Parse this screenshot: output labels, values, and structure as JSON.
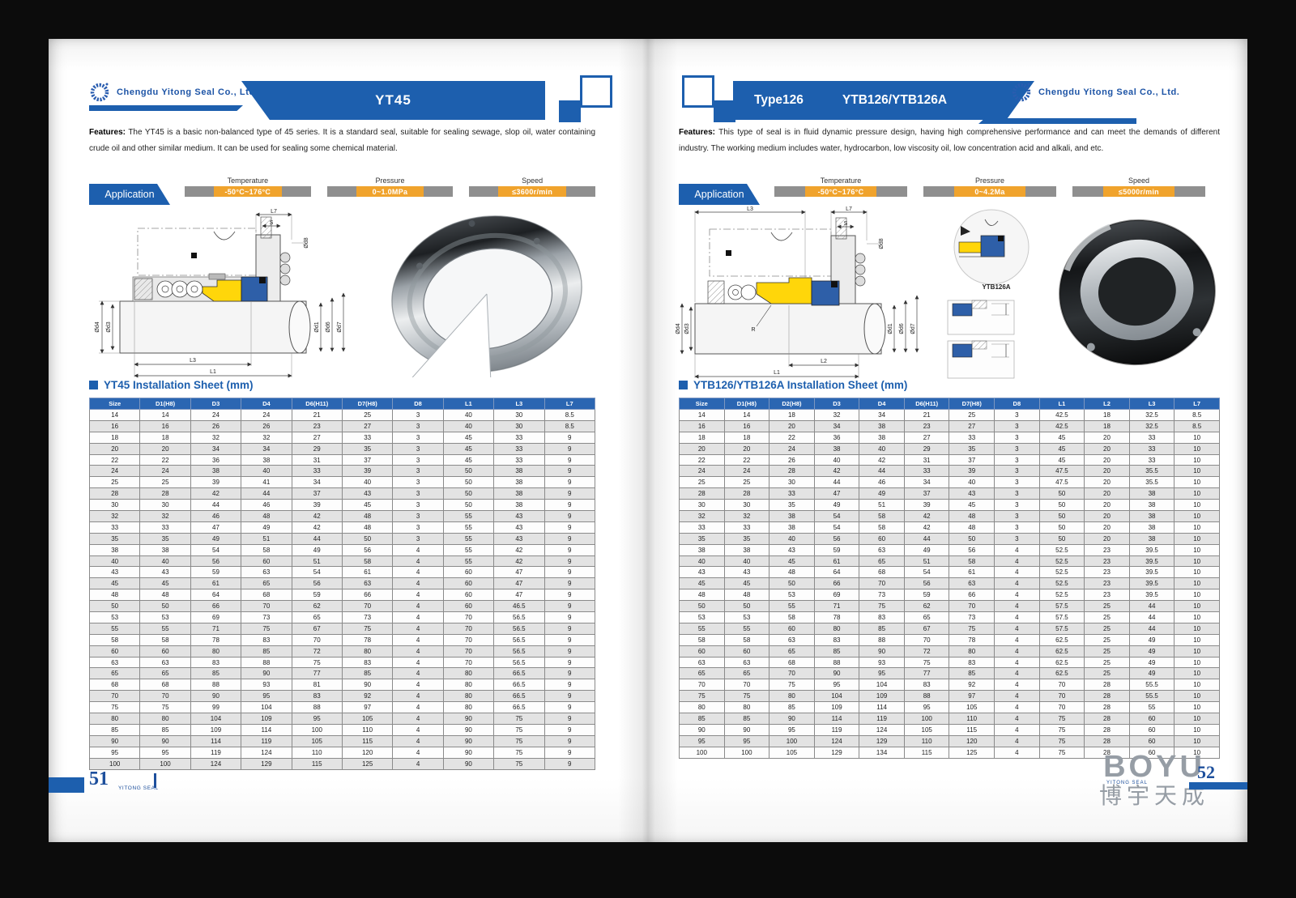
{
  "company": {
    "name": "Chengdu Yitong Seal Co., Ltd."
  },
  "colors": {
    "blue": "#1d5fae",
    "orange": "#f0a32c",
    "gray_bar": "#8f8f8f",
    "table_header_blue": "#2b66b2"
  },
  "left_page": {
    "title": "YT45",
    "features_label": "Features:",
    "features_text": "The YT45 is a basic non-balanced type of 45 series. It is a standard seal, suitable for sealing sewage, slop oil, water containing crude oil and other similar medium. It can be used for sealing some chemical material.",
    "application_label": "Application",
    "specs": [
      {
        "name": "Temperature",
        "value": "-50°C~176°C"
      },
      {
        "name": "Pressure",
        "value": "0~1.0MPa"
      },
      {
        "name": "Speed",
        "value": "≤3600r/min"
      }
    ],
    "section_title": "YT45 Installation Sheet (mm)",
    "drawing_labels": {
      "l7": "L7",
      "s": "S",
      "d8": "Ød8",
      "d4": "Ød4",
      "d3": "Ød3",
      "d1": "Ød1",
      "d6": "Ød6",
      "d7": "Ød7",
      "l3": "L3",
      "l1": "L1"
    },
    "table": {
      "columns": [
        "Size",
        "D1(H8)",
        "D3",
        "D4",
        "D6(H11)",
        "D7(H8)",
        "D8",
        "L1",
        "L3",
        "L7"
      ],
      "rows": [
        [
          "14",
          "14",
          "24",
          "24",
          "21",
          "25",
          "3",
          "40",
          "30",
          "8.5"
        ],
        [
          "16",
          "16",
          "26",
          "26",
          "23",
          "27",
          "3",
          "40",
          "30",
          "8.5"
        ],
        [
          "18",
          "18",
          "32",
          "32",
          "27",
          "33",
          "3",
          "45",
          "33",
          "9"
        ],
        [
          "20",
          "20",
          "34",
          "34",
          "29",
          "35",
          "3",
          "45",
          "33",
          "9"
        ],
        [
          "22",
          "22",
          "36",
          "38",
          "31",
          "37",
          "3",
          "45",
          "33",
          "9"
        ],
        [
          "24",
          "24",
          "38",
          "40",
          "33",
          "39",
          "3",
          "50",
          "38",
          "9"
        ],
        [
          "25",
          "25",
          "39",
          "41",
          "34",
          "40",
          "3",
          "50",
          "38",
          "9"
        ],
        [
          "28",
          "28",
          "42",
          "44",
          "37",
          "43",
          "3",
          "50",
          "38",
          "9"
        ],
        [
          "30",
          "30",
          "44",
          "46",
          "39",
          "45",
          "3",
          "50",
          "38",
          "9"
        ],
        [
          "32",
          "32",
          "46",
          "48",
          "42",
          "48",
          "3",
          "55",
          "43",
          "9"
        ],
        [
          "33",
          "33",
          "47",
          "49",
          "42",
          "48",
          "3",
          "55",
          "43",
          "9"
        ],
        [
          "35",
          "35",
          "49",
          "51",
          "44",
          "50",
          "3",
          "55",
          "43",
          "9"
        ],
        [
          "38",
          "38",
          "54",
          "58",
          "49",
          "56",
          "4",
          "55",
          "42",
          "9"
        ],
        [
          "40",
          "40",
          "56",
          "60",
          "51",
          "58",
          "4",
          "55",
          "42",
          "9"
        ],
        [
          "43",
          "43",
          "59",
          "63",
          "54",
          "61",
          "4",
          "60",
          "47",
          "9"
        ],
        [
          "45",
          "45",
          "61",
          "65",
          "56",
          "63",
          "4",
          "60",
          "47",
          "9"
        ],
        [
          "48",
          "48",
          "64",
          "68",
          "59",
          "66",
          "4",
          "60",
          "47",
          "9"
        ],
        [
          "50",
          "50",
          "66",
          "70",
          "62",
          "70",
          "4",
          "60",
          "46.5",
          "9"
        ],
        [
          "53",
          "53",
          "69",
          "73",
          "65",
          "73",
          "4",
          "70",
          "56.5",
          "9"
        ],
        [
          "55",
          "55",
          "71",
          "75",
          "67",
          "75",
          "4",
          "70",
          "56.5",
          "9"
        ],
        [
          "58",
          "58",
          "78",
          "83",
          "70",
          "78",
          "4",
          "70",
          "56.5",
          "9"
        ],
        [
          "60",
          "60",
          "80",
          "85",
          "72",
          "80",
          "4",
          "70",
          "56.5",
          "9"
        ],
        [
          "63",
          "63",
          "83",
          "88",
          "75",
          "83",
          "4",
          "70",
          "56.5",
          "9"
        ],
        [
          "65",
          "65",
          "85",
          "90",
          "77",
          "85",
          "4",
          "80",
          "66.5",
          "9"
        ],
        [
          "68",
          "68",
          "88",
          "93",
          "81",
          "90",
          "4",
          "80",
          "66.5",
          "9"
        ],
        [
          "70",
          "70",
          "90",
          "95",
          "83",
          "92",
          "4",
          "80",
          "66.5",
          "9"
        ],
        [
          "75",
          "75",
          "99",
          "104",
          "88",
          "97",
          "4",
          "80",
          "66.5",
          "9"
        ],
        [
          "80",
          "80",
          "104",
          "109",
          "95",
          "105",
          "4",
          "90",
          "75",
          "9"
        ],
        [
          "85",
          "85",
          "109",
          "114",
          "100",
          "110",
          "4",
          "90",
          "75",
          "9"
        ],
        [
          "90",
          "90",
          "114",
          "119",
          "105",
          "115",
          "4",
          "90",
          "75",
          "9"
        ],
        [
          "95",
          "95",
          "119",
          "124",
          "110",
          "120",
          "4",
          "90",
          "75",
          "9"
        ],
        [
          "100",
          "100",
          "124",
          "129",
          "115",
          "125",
          "4",
          "90",
          "75",
          "9"
        ]
      ]
    },
    "page_number": "51",
    "footer_brand": "YITONG SEAL"
  },
  "right_page": {
    "title_type": "Type126",
    "title_model": "YTB126/YTB126A",
    "features_label": "Features:",
    "features_text": "This type of seal is in fluid dynamic pressure design, having high comprehensive performance and can meet the demands of different industry. The working medium includes water, hydrocarbon, low viscosity oil, low concentration acid and alkali, and etc.",
    "application_label": "Application",
    "specs": [
      {
        "name": "Temperature",
        "value": "-50°C~176°C"
      },
      {
        "name": "Pressure",
        "value": "0~4.2Ma"
      },
      {
        "name": "Speed",
        "value": "≤5000r/min"
      }
    ],
    "section_title": "YTB126/YTB126A Installation Sheet (mm)",
    "drawing_labels": {
      "l3": "L3",
      "l7": "L7",
      "s": "S",
      "d8": "Ød8",
      "r": "R",
      "d4": "Ød4",
      "d3": "Ød3",
      "d1": "Ød1",
      "d6": "Ød6",
      "d7": "Ød7",
      "l2": "L2",
      "l1": "L1",
      "detail": "YTB126A"
    },
    "table": {
      "columns": [
        "Size",
        "D1(H8)",
        "D2(H8)",
        "D3",
        "D4",
        "D6(H11)",
        "D7(H8)",
        "D8",
        "L1",
        "L2",
        "L3",
        "L7"
      ],
      "rows": [
        [
          "14",
          "14",
          "18",
          "32",
          "34",
          "21",
          "25",
          "3",
          "42.5",
          "18",
          "32.5",
          "8.5"
        ],
        [
          "16",
          "16",
          "20",
          "34",
          "38",
          "23",
          "27",
          "3",
          "42.5",
          "18",
          "32.5",
          "8.5"
        ],
        [
          "18",
          "18",
          "22",
          "36",
          "38",
          "27",
          "33",
          "3",
          "45",
          "20",
          "33",
          "10"
        ],
        [
          "20",
          "20",
          "24",
          "38",
          "40",
          "29",
          "35",
          "3",
          "45",
          "20",
          "33",
          "10"
        ],
        [
          "22",
          "22",
          "26",
          "40",
          "42",
          "31",
          "37",
          "3",
          "45",
          "20",
          "33",
          "10"
        ],
        [
          "24",
          "24",
          "28",
          "42",
          "44",
          "33",
          "39",
          "3",
          "47.5",
          "20",
          "35.5",
          "10"
        ],
        [
          "25",
          "25",
          "30",
          "44",
          "46",
          "34",
          "40",
          "3",
          "47.5",
          "20",
          "35.5",
          "10"
        ],
        [
          "28",
          "28",
          "33",
          "47",
          "49",
          "37",
          "43",
          "3",
          "50",
          "20",
          "38",
          "10"
        ],
        [
          "30",
          "30",
          "35",
          "49",
          "51",
          "39",
          "45",
          "3",
          "50",
          "20",
          "38",
          "10"
        ],
        [
          "32",
          "32",
          "38",
          "54",
          "58",
          "42",
          "48",
          "3",
          "50",
          "20",
          "38",
          "10"
        ],
        [
          "33",
          "33",
          "38",
          "54",
          "58",
          "42",
          "48",
          "3",
          "50",
          "20",
          "38",
          "10"
        ],
        [
          "35",
          "35",
          "40",
          "56",
          "60",
          "44",
          "50",
          "3",
          "50",
          "20",
          "38",
          "10"
        ],
        [
          "38",
          "38",
          "43",
          "59",
          "63",
          "49",
          "56",
          "4",
          "52.5",
          "23",
          "39.5",
          "10"
        ],
        [
          "40",
          "40",
          "45",
          "61",
          "65",
          "51",
          "58",
          "4",
          "52.5",
          "23",
          "39.5",
          "10"
        ],
        [
          "43",
          "43",
          "48",
          "64",
          "68",
          "54",
          "61",
          "4",
          "52.5",
          "23",
          "39.5",
          "10"
        ],
        [
          "45",
          "45",
          "50",
          "66",
          "70",
          "56",
          "63",
          "4",
          "52.5",
          "23",
          "39.5",
          "10"
        ],
        [
          "48",
          "48",
          "53",
          "69",
          "73",
          "59",
          "66",
          "4",
          "52.5",
          "23",
          "39.5",
          "10"
        ],
        [
          "50",
          "50",
          "55",
          "71",
          "75",
          "62",
          "70",
          "4",
          "57.5",
          "25",
          "44",
          "10"
        ],
        [
          "53",
          "53",
          "58",
          "78",
          "83",
          "65",
          "73",
          "4",
          "57.5",
          "25",
          "44",
          "10"
        ],
        [
          "55",
          "55",
          "60",
          "80",
          "85",
          "67",
          "75",
          "4",
          "57.5",
          "25",
          "44",
          "10"
        ],
        [
          "58",
          "58",
          "63",
          "83",
          "88",
          "70",
          "78",
          "4",
          "62.5",
          "25",
          "49",
          "10"
        ],
        [
          "60",
          "60",
          "65",
          "85",
          "90",
          "72",
          "80",
          "4",
          "62.5",
          "25",
          "49",
          "10"
        ],
        [
          "63",
          "63",
          "68",
          "88",
          "93",
          "75",
          "83",
          "4",
          "62.5",
          "25",
          "49",
          "10"
        ],
        [
          "65",
          "65",
          "70",
          "90",
          "95",
          "77",
          "85",
          "4",
          "62.5",
          "25",
          "49",
          "10"
        ],
        [
          "70",
          "70",
          "75",
          "95",
          "104",
          "83",
          "92",
          "4",
          "70",
          "28",
          "55.5",
          "10"
        ],
        [
          "75",
          "75",
          "80",
          "104",
          "109",
          "88",
          "97",
          "4",
          "70",
          "28",
          "55.5",
          "10"
        ],
        [
          "80",
          "80",
          "85",
          "109",
          "114",
          "95",
          "105",
          "4",
          "70",
          "28",
          "55",
          "10"
        ],
        [
          "85",
          "85",
          "90",
          "114",
          "119",
          "100",
          "110",
          "4",
          "75",
          "28",
          "60",
          "10"
        ],
        [
          "90",
          "90",
          "95",
          "119",
          "124",
          "105",
          "115",
          "4",
          "75",
          "28",
          "60",
          "10"
        ],
        [
          "95",
          "95",
          "100",
          "124",
          "129",
          "110",
          "120",
          "4",
          "75",
          "28",
          "60",
          "10"
        ],
        [
          "100",
          "100",
          "105",
          "129",
          "134",
          "115",
          "125",
          "4",
          "75",
          "28",
          "60",
          "10"
        ]
      ]
    },
    "page_number": "52",
    "watermark": {
      "en": "BOYU",
      "cn": "博宇天成",
      "sub": "YITONG SEAL"
    }
  }
}
